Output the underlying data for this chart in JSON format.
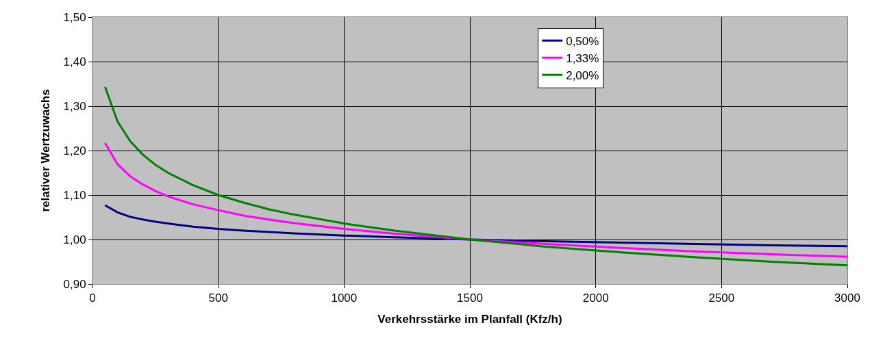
{
  "chart_data": {
    "type": "line",
    "xlabel": "Verkehrsstärke im Planfall (Kfz/h)",
    "ylabel": "relativer Wertzuwachs",
    "x": [
      50,
      100,
      150,
      200,
      250,
      300,
      400,
      500,
      600,
      700,
      800,
      1000,
      1200,
      1500,
      1800,
      2100,
      2400,
      2700,
      3000
    ],
    "series": [
      {
        "name": "0,50%",
        "color": "#000080",
        "values": [
          1.077,
          1.061,
          1.051,
          1.045,
          1.04,
          1.036,
          1.029,
          1.024,
          1.02,
          1.017,
          1.014,
          1.009,
          1.005,
          1.0,
          0.996,
          0.993,
          0.99,
          0.987,
          0.985
        ]
      },
      {
        "name": "1,33%",
        "color": "#ff00ff",
        "values": [
          1.217,
          1.169,
          1.142,
          1.124,
          1.109,
          1.097,
          1.079,
          1.066,
          1.054,
          1.045,
          1.037,
          1.024,
          1.013,
          1.0,
          0.99,
          0.981,
          0.973,
          0.967,
          0.961
        ]
      },
      {
        "name": "2,00%",
        "color": "#008000",
        "values": [
          1.343,
          1.265,
          1.221,
          1.191,
          1.168,
          1.15,
          1.122,
          1.1,
          1.083,
          1.068,
          1.056,
          1.036,
          1.02,
          1.0,
          0.984,
          0.971,
          0.96,
          0.95,
          0.942
        ]
      }
    ],
    "xlim": [
      0,
      3000
    ],
    "xticks": [
      0,
      500,
      1000,
      1500,
      2000,
      2500,
      3000
    ],
    "ylim": [
      0.9,
      1.5
    ],
    "yticks": [
      {
        "value": 0.9,
        "label": "0,90"
      },
      {
        "value": 1.0,
        "label": "1,00"
      },
      {
        "value": 1.1,
        "label": "1,10"
      },
      {
        "value": 1.2,
        "label": "1,20"
      },
      {
        "value": 1.3,
        "label": "1,30"
      },
      {
        "value": 1.4,
        "label": "1,40"
      },
      {
        "value": 1.5,
        "label": "1,50"
      }
    ],
    "grid": true,
    "legend": "top",
    "marker": "none",
    "line_style": "solid"
  }
}
